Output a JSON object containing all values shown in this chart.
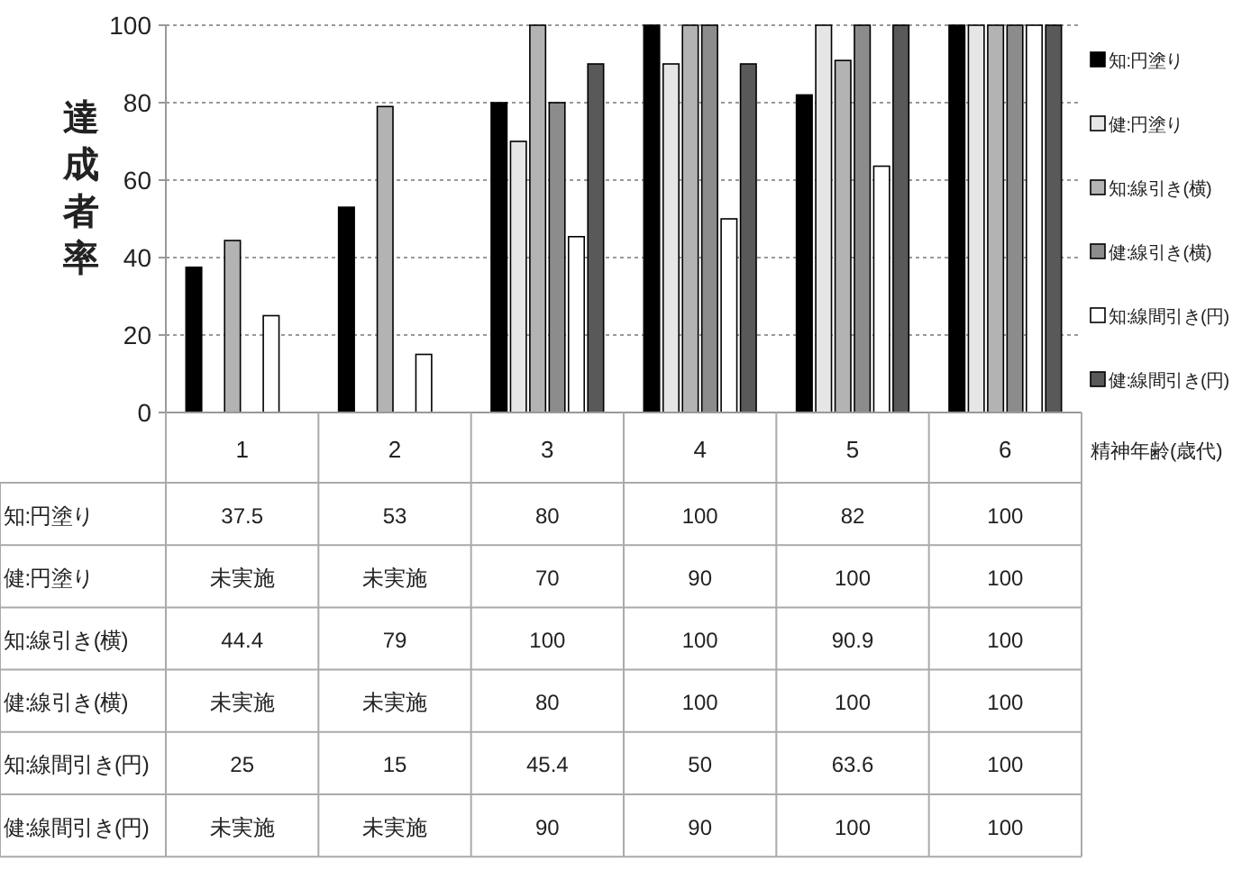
{
  "chart_data": {
    "type": "bar",
    "ylabel": "達成者率",
    "xlabel": "精神年齢(歳代)",
    "categories": [
      "1",
      "2",
      "3",
      "4",
      "5",
      "6"
    ],
    "ylim": [
      0,
      100
    ],
    "yticks": [
      0,
      20,
      40,
      60,
      80,
      100
    ],
    "grid": "y",
    "legend": "right",
    "series": [
      {
        "name": "知:円塗り",
        "color": "#000000",
        "values": [
          37.5,
          53,
          80,
          100,
          82,
          100
        ],
        "value_labels": [
          "37.5",
          "53",
          "80",
          "100",
          "82",
          "100"
        ]
      },
      {
        "name": "健:円塗り",
        "color": "#e6e6e6",
        "values": [
          null,
          null,
          70,
          90,
          100,
          100
        ],
        "value_labels": [
          "未実施",
          "未実施",
          "70",
          "90",
          "100",
          "100"
        ]
      },
      {
        "name": "知:線引き(横)",
        "color": "#b3b3b3",
        "values": [
          44.4,
          79,
          100,
          100,
          90.9,
          100
        ],
        "value_labels": [
          "44.4",
          "79",
          "100",
          "100",
          "90.9",
          "100"
        ]
      },
      {
        "name": "健:線引き(横)",
        "color": "#8c8c8c",
        "values": [
          null,
          null,
          80,
          100,
          100,
          100
        ],
        "value_labels": [
          "未実施",
          "未実施",
          "80",
          "100",
          "100",
          "100"
        ]
      },
      {
        "name": "知:線間引き(円)",
        "color": "#ffffff",
        "values": [
          25,
          15,
          45.4,
          50,
          63.6,
          100
        ],
        "value_labels": [
          "25",
          "15",
          "45.4",
          "50",
          "63.6",
          "100"
        ]
      },
      {
        "name": "健:線間引き(円)",
        "color": "#595959",
        "values": [
          null,
          null,
          90,
          90,
          100,
          100
        ],
        "value_labels": [
          "未実施",
          "未実施",
          "90",
          "90",
          "100",
          "100"
        ]
      }
    ]
  }
}
